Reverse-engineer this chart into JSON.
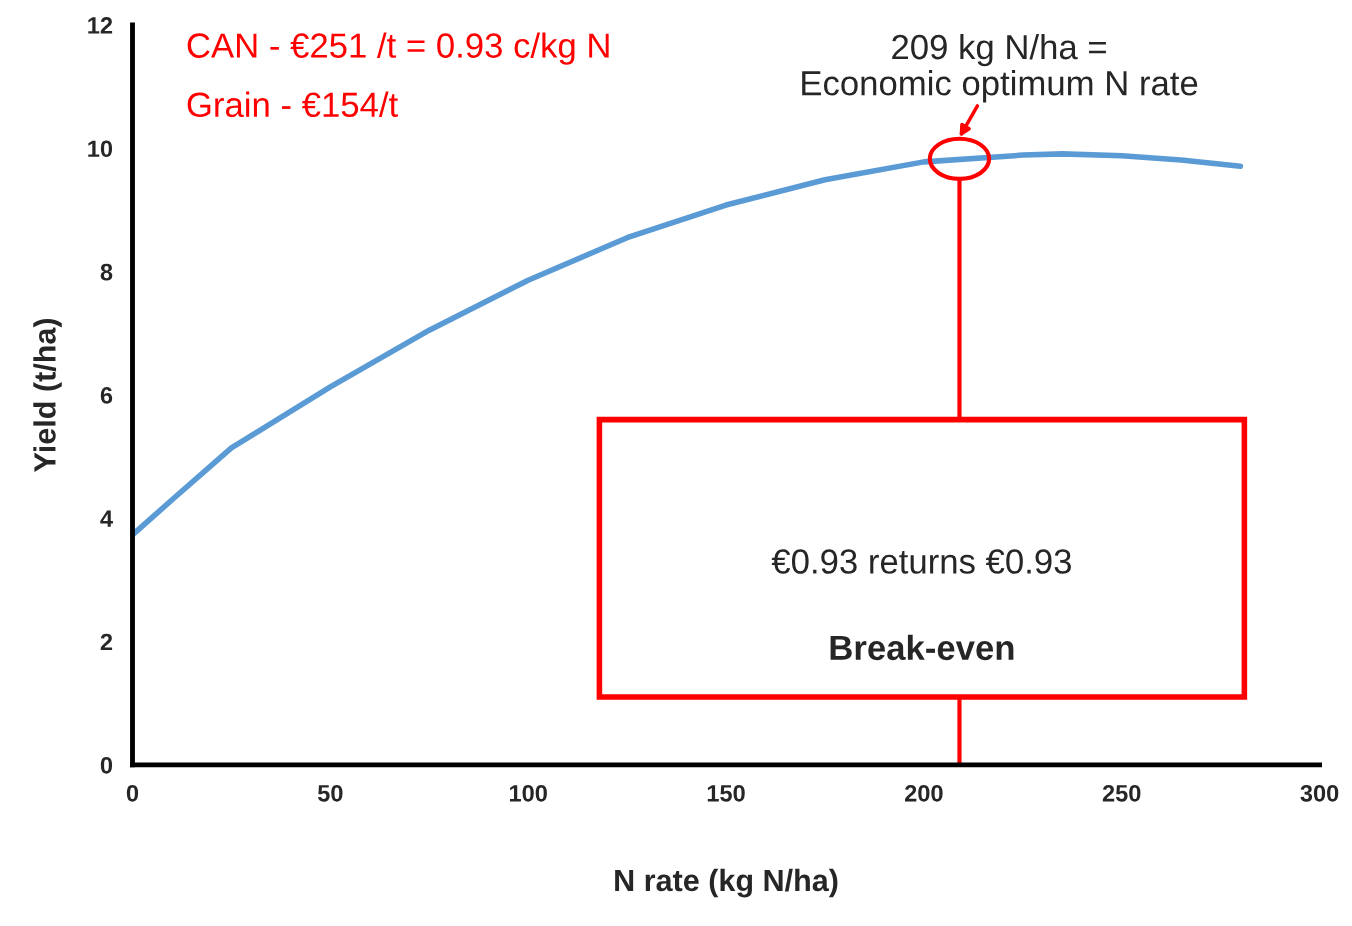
{
  "chart_data": {
    "type": "line",
    "xlabel": "N rate (kg N/ha)",
    "ylabel": "Yield (t/ha)",
    "x": [
      0,
      10,
      25,
      50,
      75,
      100,
      125,
      150,
      175,
      200,
      225,
      235,
      250,
      265,
      280
    ],
    "series": [
      {
        "color": "#5b9bd5",
        "values": [
          3.73,
          4.3,
          5.14,
          6.13,
          7.05,
          7.86,
          8.55,
          9.08,
          9.49,
          9.78,
          9.89,
          9.91,
          9.88,
          9.81,
          9.71
        ]
      }
    ],
    "xlim": [
      0,
      300
    ],
    "xticks": [
      0,
      50,
      100,
      150,
      200,
      250,
      300
    ],
    "ylim": [
      0,
      12
    ],
    "yticks": [
      0,
      2,
      4,
      6,
      8,
      10,
      12
    ],
    "grid": false,
    "legend": false,
    "marker": "none",
    "line_style": "solid",
    "ref_lines": [
      {
        "axis": "x",
        "value": 209,
        "color": "#ff0000"
      }
    ],
    "annotations": [
      "CAN - €251 /t = 0.93 c/kg N",
      "Grain - €154/t",
      {
        "text": "209 kg N/ha =\nEconomic optimum N rate",
        "x": 209,
        "y": 9.83
      },
      "€0.93 returns €0.93",
      "Break-even"
    ]
  }
}
